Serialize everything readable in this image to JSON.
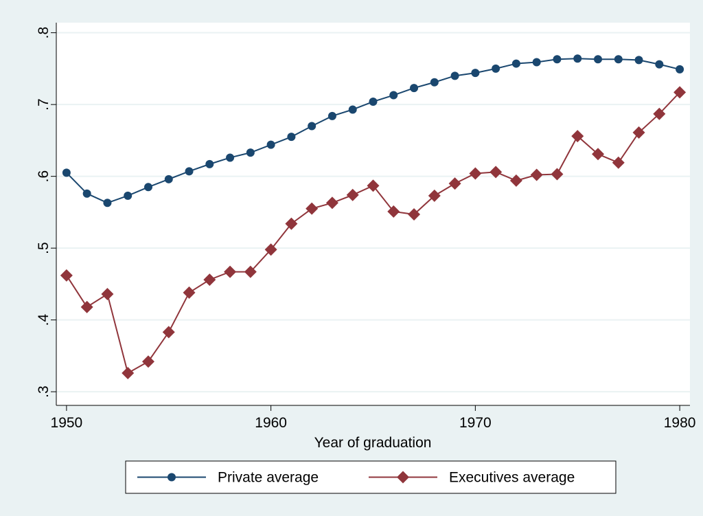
{
  "chart_data": {
    "type": "line",
    "x_label": "Year of graduation",
    "x": [
      1950,
      1951,
      1952,
      1953,
      1954,
      1955,
      1956,
      1957,
      1958,
      1959,
      1960,
      1961,
      1962,
      1963,
      1964,
      1965,
      1966,
      1967,
      1968,
      1969,
      1970,
      1971,
      1972,
      1973,
      1974,
      1975,
      1976,
      1977,
      1978,
      1979,
      1980
    ],
    "series": [
      {
        "name": "Private average",
        "color": "#1a476f",
        "marker": "circle",
        "values": [
          0.605,
          0.576,
          0.563,
          0.573,
          0.585,
          0.596,
          0.607,
          0.617,
          0.626,
          0.633,
          0.644,
          0.655,
          0.67,
          0.684,
          0.693,
          0.704,
          0.713,
          0.723,
          0.731,
          0.74,
          0.744,
          0.75,
          0.757,
          0.759,
          0.763,
          0.764,
          0.763,
          0.763,
          0.762,
          0.756,
          0.749
        ]
      },
      {
        "name": "Executives average",
        "color": "#90353b",
        "marker": "diamond",
        "values": [
          0.462,
          0.418,
          0.436,
          0.326,
          0.342,
          0.383,
          0.438,
          0.456,
          0.467,
          0.467,
          0.498,
          0.534,
          0.555,
          0.563,
          0.574,
          0.587,
          0.551,
          0.547,
          0.573,
          0.59,
          0.604,
          0.606,
          0.594,
          0.602,
          0.603,
          0.656,
          0.631,
          0.619,
          0.661,
          0.687,
          0.717
        ]
      }
    ],
    "xlim": [
      1949.5,
      1980.5
    ],
    "xticks": [
      1950,
      1960,
      1970,
      1980
    ],
    "ylim": [
      0.281,
      0.814
    ],
    "yticks": [
      {
        "value": 0.3,
        "label": ".3"
      },
      {
        "value": 0.4,
        "label": ".4"
      },
      {
        "value": 0.5,
        "label": ".5"
      },
      {
        "value": 0.6,
        "label": ".6"
      },
      {
        "value": 0.7,
        "label": ".7"
      },
      {
        "value": 0.8,
        "label": ".8"
      }
    ],
    "grid": true,
    "legend": "bottom"
  }
}
